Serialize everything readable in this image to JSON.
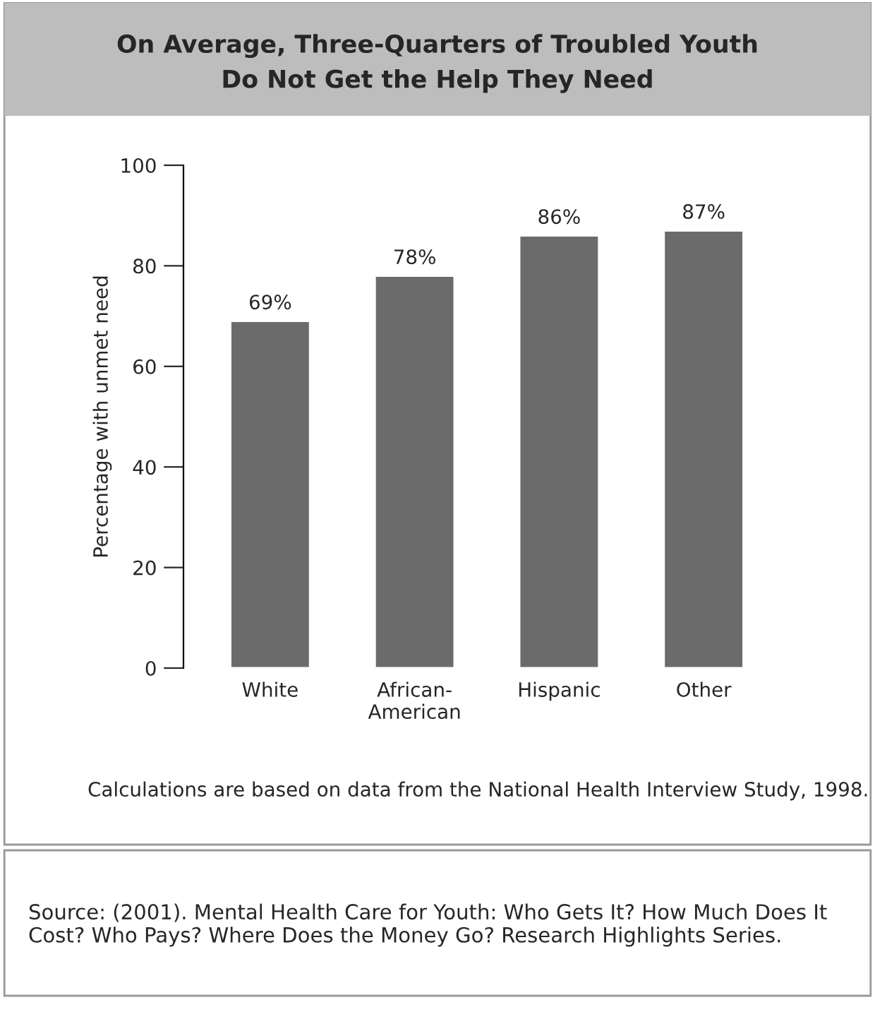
{
  "chart_data": {
    "type": "bar",
    "title": "On Average, Three-Quarters of Troubled Youth\nDo Not Get the Help They Need",
    "ylabel": "Percentage with unmet need",
    "categories": [
      "White",
      "African-\nAmerican",
      "Hispanic",
      "Other"
    ],
    "values": [
      69,
      78,
      86,
      87
    ],
    "value_labels": [
      "69%",
      "78%",
      "86%",
      "87%"
    ],
    "color": "#6b6b6b",
    "ylim": [
      0,
      100
    ],
    "yticks": [
      0,
      20,
      40,
      60,
      80,
      100
    ],
    "grid": false,
    "annotations": [
      "Calculations are based on data from the National Health Interview Study, 1998.",
      "Source: (2001). Mental Health Care for Youth: Who Gets It? How Much Does It Cost? Who Pays? Where Does the Money Go? Research Highlights Series."
    ]
  }
}
